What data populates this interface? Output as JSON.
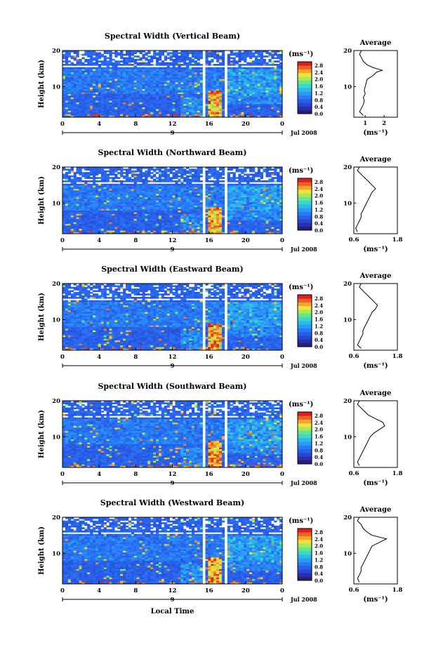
{
  "figure": {
    "bottom_xlabel": "Local Time",
    "date_label": "Jul 2008",
    "day_label": "9",
    "heatmap_ylabel": "Height (km)",
    "colorbar_unit": "(ms⁻¹)",
    "average_title": "Average",
    "average_xlabel": "(ms⁻¹)"
  },
  "chart_data": [
    {
      "type": "heatmap",
      "title": "Spectral Width (Vertical Beam)",
      "ylabel": "Height (km)",
      "xlabel": "",
      "xlim": [
        0,
        24
      ],
      "x_ticks": [
        "0",
        "4",
        "8",
        "12",
        "16",
        "20",
        "0"
      ],
      "ylim": [
        1.5,
        20
      ],
      "y_ticks": [
        "10",
        "20"
      ],
      "colorbar": {
        "ticks": [
          "0.0",
          "0.4",
          "0.8",
          "1.2",
          "1.6",
          "2.0",
          "2.4",
          "2.8"
        ],
        "range": [
          0,
          3.0
        ]
      },
      "gaps_hours": [
        [
          15.4,
          15.7
        ],
        [
          17.6,
          17.9
        ]
      ],
      "white_band_km": [
        15.5,
        16.0
      ],
      "average": {
        "xlim": [
          0.4,
          2.7
        ],
        "x_ticks": [
          "1",
          "2"
        ],
        "y_ticks": [
          "10",
          "20"
        ],
        "profile": [
          [
            0.9,
            2
          ],
          [
            0.7,
            3
          ],
          [
            0.8,
            4
          ],
          [
            0.9,
            5
          ],
          [
            0.95,
            6
          ],
          [
            0.9,
            7
          ],
          [
            1.0,
            8
          ],
          [
            0.95,
            9
          ],
          [
            1.0,
            10
          ],
          [
            1.05,
            11
          ],
          [
            1.1,
            12
          ],
          [
            1.4,
            13
          ],
          [
            1.6,
            14
          ],
          [
            1.9,
            14.5
          ],
          [
            1.4,
            15.3
          ],
          [
            1.1,
            16
          ],
          [
            0.9,
            17
          ],
          [
            0.8,
            18
          ],
          [
            0.7,
            19
          ],
          [
            0.8,
            20
          ]
        ]
      }
    },
    {
      "type": "heatmap",
      "title": "Spectral Width (Northward Beam)",
      "ylabel": "Height (km)",
      "xlabel": "",
      "xlim": [
        0,
        24
      ],
      "x_ticks": [
        "0",
        "4",
        "8",
        "12",
        "16",
        "20",
        "0"
      ],
      "ylim": [
        1.5,
        20
      ],
      "y_ticks": [
        "10",
        "20"
      ],
      "colorbar": {
        "ticks": [
          "0.0",
          "0.4",
          "0.8",
          "1.2",
          "1.6",
          "2.0",
          "2.4",
          "2.8"
        ],
        "range": [
          0,
          3.0
        ]
      },
      "gaps_hours": [
        [
          14.1,
          14.2
        ],
        [
          15.4,
          15.7
        ],
        [
          17.6,
          17.9
        ]
      ],
      "white_band_km": [
        15.5,
        16.0
      ],
      "average": {
        "xlim": [
          0.6,
          1.8
        ],
        "x_ticks": [
          "0.6",
          "1.8"
        ],
        "y_ticks": [
          "10",
          "20"
        ],
        "profile": [
          [
            0.7,
            2
          ],
          [
            0.65,
            3
          ],
          [
            0.7,
            4
          ],
          [
            0.75,
            5
          ],
          [
            0.8,
            6
          ],
          [
            0.8,
            7
          ],
          [
            0.85,
            8
          ],
          [
            0.9,
            9
          ],
          [
            0.95,
            10
          ],
          [
            1.0,
            11
          ],
          [
            1.05,
            12
          ],
          [
            1.1,
            13
          ],
          [
            1.2,
            14
          ],
          [
            1.1,
            15
          ],
          [
            1.0,
            16
          ],
          [
            0.9,
            17
          ],
          [
            0.8,
            18
          ],
          [
            0.7,
            19
          ],
          [
            0.75,
            20
          ]
        ]
      }
    },
    {
      "type": "heatmap",
      "title": "Spectral Width (Eastward Beam)",
      "ylabel": "Height (km)",
      "xlabel": "",
      "xlim": [
        0,
        24
      ],
      "x_ticks": [
        "0",
        "4",
        "8",
        "12",
        "16",
        "20",
        "0"
      ],
      "ylim": [
        1.5,
        20
      ],
      "y_ticks": [
        "10",
        "20"
      ],
      "colorbar": {
        "ticks": [
          "0.0",
          "0.4",
          "0.8",
          "1.2",
          "1.6",
          "2.0",
          "2.4",
          "2.8"
        ],
        "range": [
          0,
          3.0
        ]
      },
      "gaps_hours": [
        [
          14.1,
          14.2
        ],
        [
          15.4,
          15.7
        ],
        [
          17.6,
          17.9
        ]
      ],
      "white_band_km": [
        15.5,
        16.0
      ],
      "average": {
        "xlim": [
          0.6,
          1.8
        ],
        "x_ticks": [
          "0.6",
          "1.8"
        ],
        "y_ticks": [
          "10",
          "20"
        ],
        "profile": [
          [
            0.8,
            2
          ],
          [
            0.7,
            3
          ],
          [
            0.75,
            4
          ],
          [
            0.8,
            5
          ],
          [
            0.85,
            6
          ],
          [
            0.85,
            7
          ],
          [
            0.9,
            8
          ],
          [
            0.95,
            9
          ],
          [
            1.0,
            10
          ],
          [
            1.05,
            11
          ],
          [
            1.1,
            12
          ],
          [
            1.2,
            13
          ],
          [
            1.25,
            14
          ],
          [
            1.15,
            15
          ],
          [
            1.05,
            16
          ],
          [
            0.95,
            17
          ],
          [
            0.85,
            18
          ],
          [
            0.75,
            19
          ],
          [
            0.8,
            20
          ]
        ]
      }
    },
    {
      "type": "heatmap",
      "title": "Spectral Width (Southward Beam)",
      "ylabel": "Height (km)",
      "xlabel": "",
      "xlim": [
        0,
        24
      ],
      "x_ticks": [
        "0",
        "4",
        "8",
        "12",
        "16",
        "20",
        "0"
      ],
      "ylim": [
        1.5,
        20
      ],
      "y_ticks": [
        "10",
        "20"
      ],
      "colorbar": {
        "ticks": [
          "0.0",
          "0.4",
          "0.8",
          "1.2",
          "1.6",
          "2.0",
          "2.4",
          "2.8"
        ],
        "range": [
          0,
          3.0
        ]
      },
      "gaps_hours": [
        [
          14.1,
          14.2
        ],
        [
          15.4,
          15.7
        ],
        [
          17.6,
          17.9
        ]
      ],
      "white_band_km": [
        15.5,
        16.0
      ],
      "average": {
        "xlim": [
          0.6,
          1.8
        ],
        "x_ticks": [
          "0.6",
          "1.8"
        ],
        "y_ticks": [
          "10",
          "20"
        ],
        "profile": [
          [
            0.75,
            2
          ],
          [
            0.7,
            3
          ],
          [
            0.75,
            4
          ],
          [
            0.8,
            5
          ],
          [
            0.85,
            6
          ],
          [
            0.9,
            7
          ],
          [
            0.95,
            8
          ],
          [
            1.0,
            9
          ],
          [
            1.05,
            10
          ],
          [
            1.15,
            11
          ],
          [
            1.3,
            12
          ],
          [
            1.45,
            13
          ],
          [
            1.4,
            14
          ],
          [
            1.2,
            15
          ],
          [
            1.0,
            16
          ],
          [
            0.9,
            17
          ],
          [
            0.8,
            18
          ],
          [
            0.7,
            19
          ],
          [
            0.75,
            20
          ]
        ]
      }
    },
    {
      "type": "heatmap",
      "title": "Spectral Width (Westward Beam)",
      "ylabel": "Height (km)",
      "xlabel": "Local Time",
      "xlim": [
        0,
        24
      ],
      "x_ticks": [
        "0",
        "4",
        "8",
        "12",
        "16",
        "20",
        "0"
      ],
      "ylim": [
        1.5,
        20
      ],
      "y_ticks": [
        "10",
        "20"
      ],
      "colorbar": {
        "ticks": [
          "0.0",
          "0.4",
          "0.8",
          "1.2",
          "1.6",
          "2.0",
          "2.4",
          "2.8"
        ],
        "range": [
          0,
          3.0
        ]
      },
      "gaps_hours": [
        [
          14.1,
          14.2
        ],
        [
          15.4,
          15.7
        ],
        [
          17.6,
          17.9
        ]
      ],
      "white_band_km": [
        15.5,
        16.0
      ],
      "average": {
        "xlim": [
          0.6,
          1.8
        ],
        "x_ticks": [
          "0.6",
          "1.8"
        ],
        "y_ticks": [
          "10",
          "20"
        ],
        "profile": [
          [
            0.75,
            2
          ],
          [
            0.7,
            3
          ],
          [
            0.75,
            4
          ],
          [
            0.8,
            5
          ],
          [
            0.8,
            6
          ],
          [
            0.85,
            7
          ],
          [
            0.9,
            8
          ],
          [
            0.95,
            9
          ],
          [
            1.0,
            10
          ],
          [
            1.05,
            11
          ],
          [
            1.1,
            12
          ],
          [
            1.3,
            13
          ],
          [
            1.5,
            14
          ],
          [
            1.1,
            15
          ],
          [
            0.95,
            16
          ],
          [
            0.85,
            17
          ],
          [
            0.8,
            18
          ],
          [
            0.7,
            19
          ],
          [
            0.75,
            20
          ]
        ]
      }
    }
  ]
}
